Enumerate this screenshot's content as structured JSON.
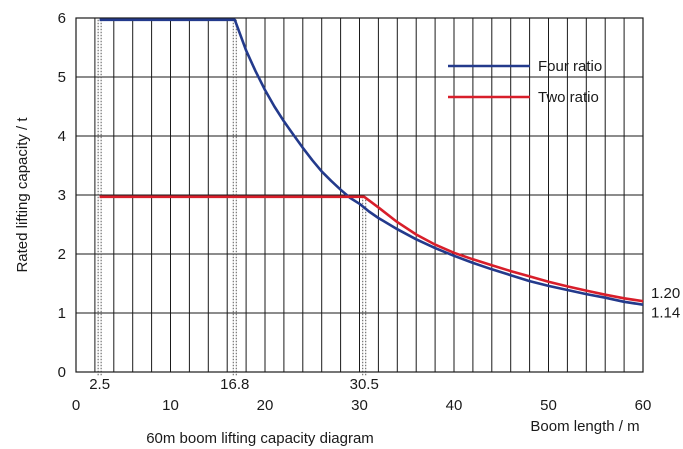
{
  "chart_data": {
    "type": "line",
    "title": "60m boom lifting capacity diagram",
    "xlabel": "Boom length / m",
    "ylabel": "Rated lifting capacity / t",
    "xlim": [
      0,
      60
    ],
    "ylim": [
      0,
      6
    ],
    "x_ticks": [
      0,
      10,
      20,
      30,
      40,
      50,
      60
    ],
    "y_ticks": [
      0,
      1,
      2,
      3,
      4,
      5,
      6
    ],
    "x_ticks_highlight": [
      2.5,
      16.8,
      30.5
    ],
    "grid": true,
    "grid_x_step": 2,
    "legend_position": "top-right",
    "end_labels": [
      "1.20",
      "1.14"
    ],
    "series": [
      {
        "name": "Four ratio",
        "color": "#233a8c",
        "x": [
          2.5,
          16.8,
          18,
          19,
          20,
          21,
          22,
          23,
          24,
          25,
          26,
          27,
          28,
          29,
          30,
          31,
          32,
          34,
          36,
          38,
          40,
          42,
          44,
          46,
          48,
          50,
          52,
          54,
          56,
          58,
          60
        ],
        "y": [
          5.97,
          5.97,
          5.45,
          5.1,
          4.78,
          4.5,
          4.25,
          4.02,
          3.8,
          3.59,
          3.4,
          3.24,
          3.09,
          2.95,
          2.85,
          2.72,
          2.61,
          2.42,
          2.25,
          2.1,
          1.97,
          1.85,
          1.74,
          1.64,
          1.54,
          1.46,
          1.39,
          1.32,
          1.26,
          1.19,
          1.14
        ]
      },
      {
        "name": "Two ratio",
        "color": "#d81e2a",
        "x": [
          2.5,
          30.5,
          32,
          34,
          36,
          38,
          40,
          42,
          44,
          46,
          48,
          50,
          52,
          54,
          56,
          58,
          60
        ],
        "y": [
          2.97,
          2.97,
          2.79,
          2.54,
          2.33,
          2.16,
          2.02,
          1.91,
          1.81,
          1.71,
          1.62,
          1.53,
          1.45,
          1.38,
          1.31,
          1.25,
          1.2
        ]
      }
    ]
  }
}
